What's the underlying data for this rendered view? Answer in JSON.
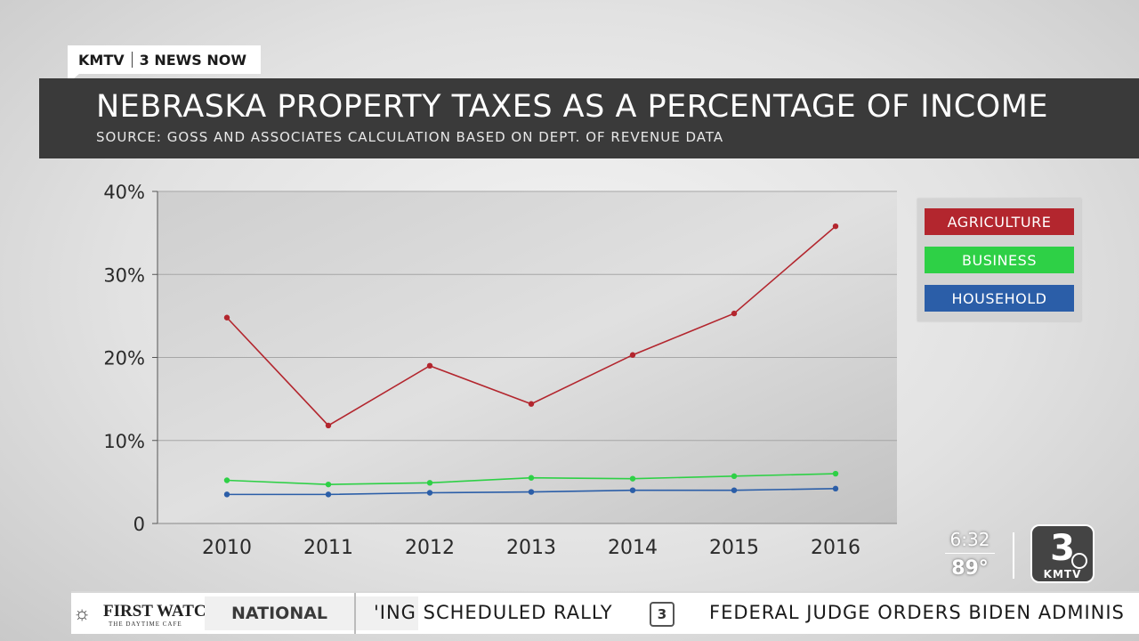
{
  "brand": {
    "station": "KMTV",
    "program": "3 NEWS NOW"
  },
  "header": {
    "title": "NEBRASKA PROPERTY TAXES AS A PERCENTAGE OF INCOME",
    "subtitle": "SOURCE: GOSS AND ASSOCIATES CALCULATION BASED ON DEPT. OF REVENUE DATA"
  },
  "chart_data": {
    "type": "line",
    "title": "NEBRASKA PROPERTY TAXES AS A PERCENTAGE OF INCOME",
    "xlabel": "",
    "ylabel": "",
    "categories": [
      "2010",
      "2011",
      "2012",
      "2013",
      "2014",
      "2015",
      "2016"
    ],
    "y_ticks": [
      {
        "value": 0,
        "label": "0"
      },
      {
        "value": 10,
        "label": "10%"
      },
      {
        "value": 20,
        "label": "20%"
      },
      {
        "value": 30,
        "label": "30%"
      },
      {
        "value": 40,
        "label": "40%"
      }
    ],
    "ylim": [
      0,
      40
    ],
    "grid": true,
    "legend_position": "right",
    "series": [
      {
        "name": "AGRICULTURE",
        "color": "#b3262e",
        "values": [
          24.8,
          11.8,
          19.0,
          14.4,
          20.3,
          25.3,
          35.8
        ]
      },
      {
        "name": "BUSINESS",
        "color": "#2ed046",
        "values": [
          5.2,
          4.7,
          4.9,
          5.5,
          5.4,
          5.7,
          6.0
        ]
      },
      {
        "name": "HOUSEHOLD",
        "color": "#2b5ea8",
        "values": [
          3.5,
          3.5,
          3.7,
          3.8,
          4.0,
          4.0,
          4.2
        ]
      }
    ]
  },
  "legend": {
    "items": [
      {
        "label": "AGRICULTURE",
        "color": "#b3262e"
      },
      {
        "label": "BUSINESS",
        "color": "#2ed046"
      },
      {
        "label": "HOUSEHOLD",
        "color": "#2b5ea8"
      }
    ]
  },
  "overlay": {
    "time": "6:32",
    "temperature": "89°",
    "logo_number": "3",
    "logo_call": "KMTV"
  },
  "ticker": {
    "sponsor_name": "FIRST WATCH",
    "sponsor_tagline": "THE DAYTIME CAFE",
    "section": "NATIONAL",
    "headline_1": "'ING SCHEDULED RALLY",
    "logo_number": "3",
    "headline_2": "FEDERAL JUDGE ORDERS BIDEN ADMINIS"
  }
}
